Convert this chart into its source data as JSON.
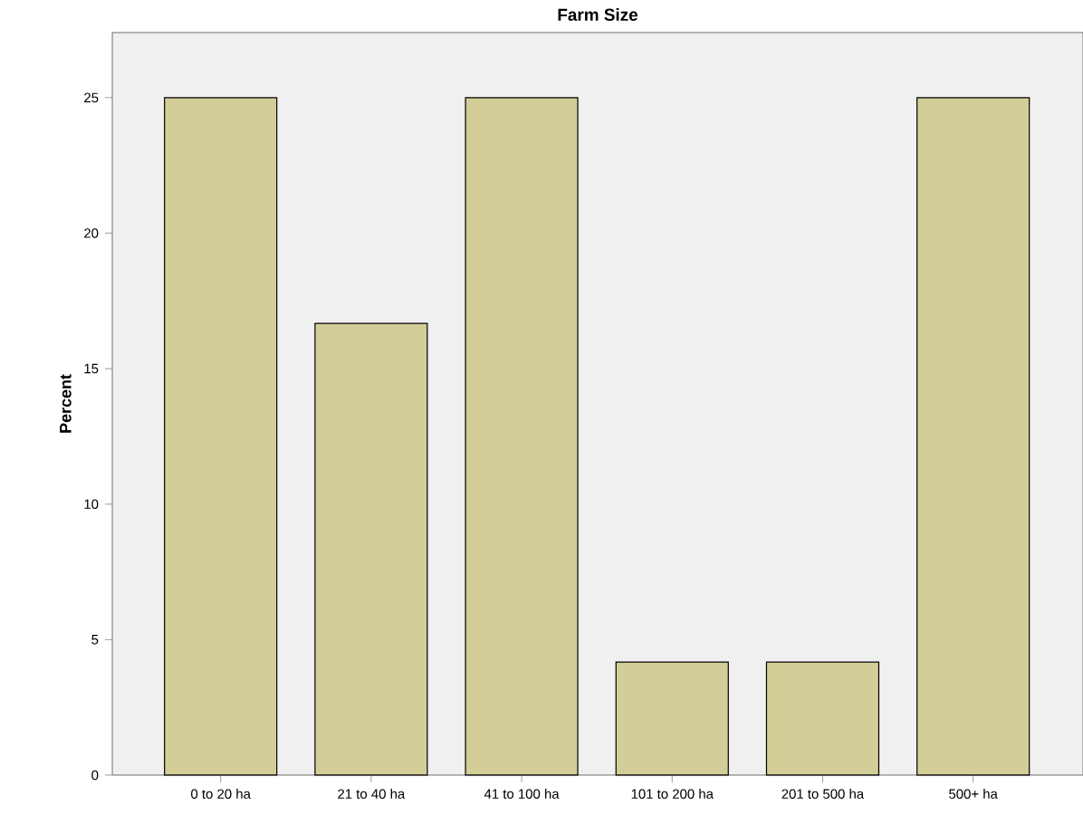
{
  "chart_data": {
    "type": "bar",
    "title": "Farm Size",
    "ylabel": "Percent",
    "categories": [
      "0 to 20 ha",
      "21 to 40 ha",
      "41 to 100 ha",
      "101 to 200 ha",
      "201 to 500 ha",
      "500+ ha"
    ],
    "values": [
      25,
      16.67,
      25,
      4.17,
      4.17,
      25
    ],
    "color": "#d3ce97",
    "ylim": [
      0,
      27.4
    ],
    "yticks": [
      0,
      5,
      10,
      15,
      20,
      25
    ],
    "grid": false
  }
}
